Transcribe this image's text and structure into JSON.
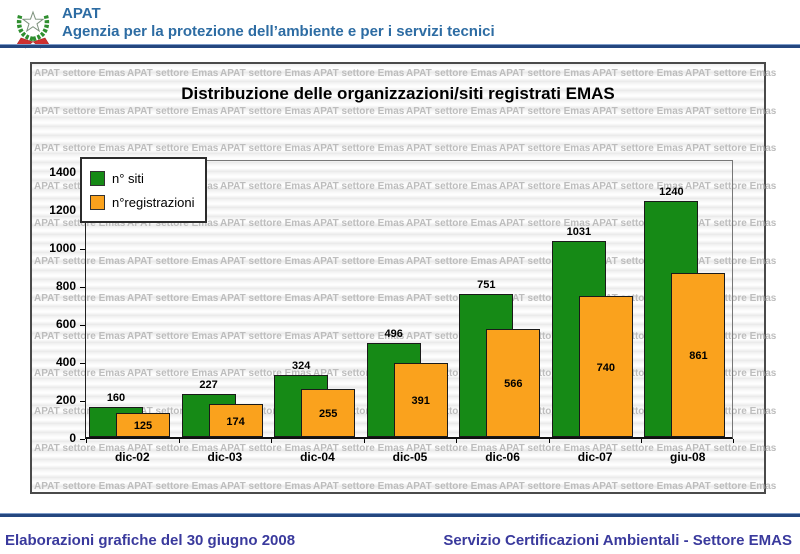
{
  "header": {
    "title": "APAT",
    "subtitle": "Agenzia per la protezione dell’ambiente e per i servizi tecnici"
  },
  "watermark_text": "APAT settore Emas",
  "chart_data": {
    "type": "bar",
    "title": "Distribuzione delle organizzazioni/siti registrati EMAS",
    "categories": [
      "dic-02",
      "dic-03",
      "dic-04",
      "dic-05",
      "dic-06",
      "dic-07",
      "giu-08"
    ],
    "series": [
      {
        "name": "n° siti",
        "color": "#168a16",
        "values": [
          160,
          227,
          324,
          496,
          751,
          1031,
          1240
        ]
      },
      {
        "name": "n°registrazioni",
        "color": "#faa21d",
        "values": [
          125,
          174,
          255,
          391,
          566,
          740,
          861
        ]
      }
    ],
    "y_ticks": [
      0,
      200,
      400,
      600,
      800,
      1000,
      1200,
      1400
    ],
    "ylim": [
      0,
      1460
    ],
    "grid": false,
    "legend_position": "top-left",
    "value_labels": "green above bar, orange centered inside bar"
  },
  "footer": {
    "left": "Elaborazioni grafiche del 30 giugno 2008",
    "right": "Servizio Certificazioni Ambientali - Settore EMAS"
  },
  "colors": {
    "header_text": "#2d6ca3",
    "rule_navy": "#24477f",
    "footer_text": "#3a3a9d",
    "watermark": "#bdbdbd",
    "bar_green": "#168a16",
    "bar_orange": "#faa21d"
  }
}
